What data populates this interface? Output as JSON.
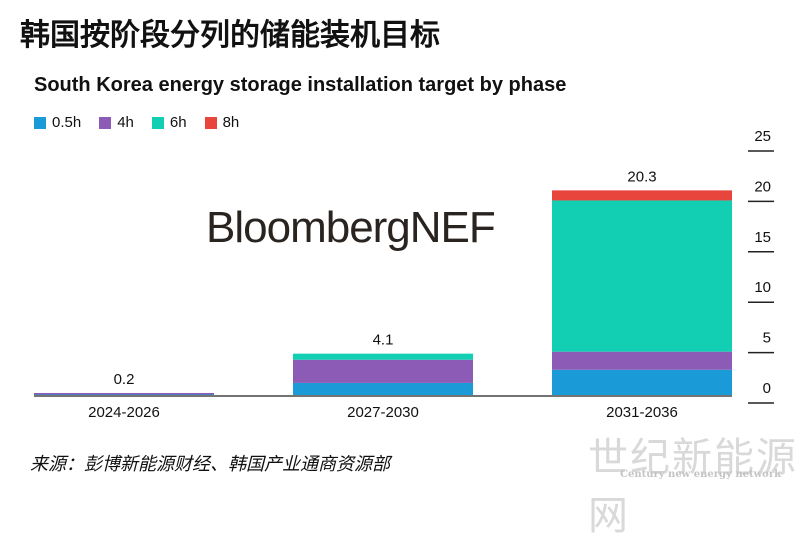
{
  "headline": "韩国按阶段分列的储能装机目标",
  "brand": "BloombergNEF",
  "source": "来源：彭博新能源财经、韩国产业通商资源部",
  "watermark": {
    "cn": "世纪新能源网",
    "en": "Century new energy network"
  },
  "chart_data": {
    "type": "bar",
    "stacked": true,
    "title": "South Korea energy storage installation target by phase",
    "categories": [
      "2024-2026",
      "2027-2030",
      "2031-2036"
    ],
    "series": [
      {
        "name": "0.5h",
        "color": "#1a9ad6",
        "values": [
          0.15,
          1.2,
          2.5
        ]
      },
      {
        "name": "4h",
        "color": "#8b5bb5",
        "values": [
          0.05,
          2.3,
          1.8
        ]
      },
      {
        "name": "6h",
        "color": "#12cfb4",
        "values": [
          0.0,
          0.6,
          15.0
        ]
      },
      {
        "name": "8h",
        "color": "#e8453c",
        "values": [
          0.0,
          0.0,
          1.0
        ]
      }
    ],
    "totals": [
      "0.2",
      "4.1",
      "20.3"
    ],
    "y_ticks": [
      0,
      5,
      10,
      15,
      20,
      25
    ],
    "ylim": [
      0,
      25
    ],
    "y_axis_side": "right",
    "legend_position": "top-left",
    "grid": false
  }
}
